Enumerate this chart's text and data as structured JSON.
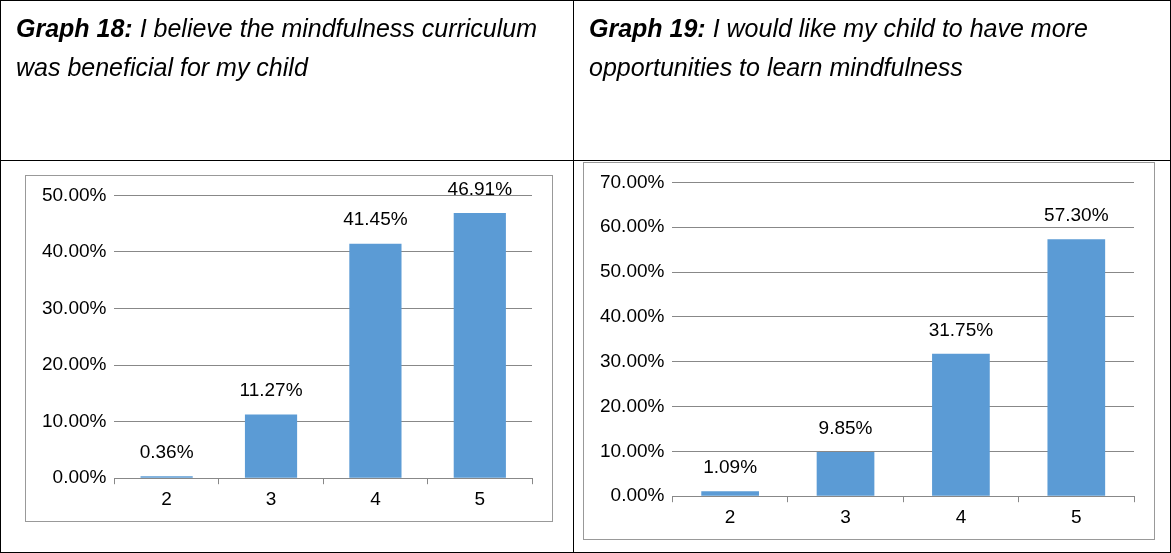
{
  "chart_data": [
    {
      "type": "bar",
      "title": "Graph 18: I believe the mindfulness curriculum was beneficial for my child",
      "categories": [
        "2",
        "3",
        "4",
        "5"
      ],
      "values": [
        0.36,
        11.27,
        41.45,
        46.91
      ],
      "color": "#5b9bd5",
      "value_labels": [
        "0.36%",
        "11.27%",
        "41.45%",
        "46.91%"
      ],
      "ylim": [
        0,
        50
      ],
      "yticks": [
        {
          "value": 0,
          "label": "0.00%"
        },
        {
          "value": 10,
          "label": "10.00%"
        },
        {
          "value": 20,
          "label": "20.00%"
        },
        {
          "value": 30,
          "label": "30.00%"
        },
        {
          "value": 40,
          "label": "40.00%"
        },
        {
          "value": 50,
          "label": "50.00%"
        }
      ],
      "grid": "y",
      "legend": false
    },
    {
      "type": "bar",
      "title": "Graph 19: I would like my child to have more opportunities to learn mindfulness",
      "categories": [
        "2",
        "3",
        "4",
        "5"
      ],
      "values": [
        1.09,
        9.85,
        31.75,
        57.3
      ],
      "color": "#5b9bd5",
      "value_labels": [
        "1.09%",
        "9.85%",
        "31.75%",
        "57.30%"
      ],
      "ylim": [
        0,
        70
      ],
      "yticks": [
        {
          "value": 0,
          "label": "0.00%"
        },
        {
          "value": 10,
          "label": "10.00%"
        },
        {
          "value": 20,
          "label": "20.00%"
        },
        {
          "value": 30,
          "label": "30.00%"
        },
        {
          "value": 40,
          "label": "40.00%"
        },
        {
          "value": 50,
          "label": "50.00%"
        },
        {
          "value": 60,
          "label": "60.00%"
        },
        {
          "value": 70,
          "label": "70.00%"
        }
      ],
      "grid": "y",
      "legend": false
    }
  ]
}
